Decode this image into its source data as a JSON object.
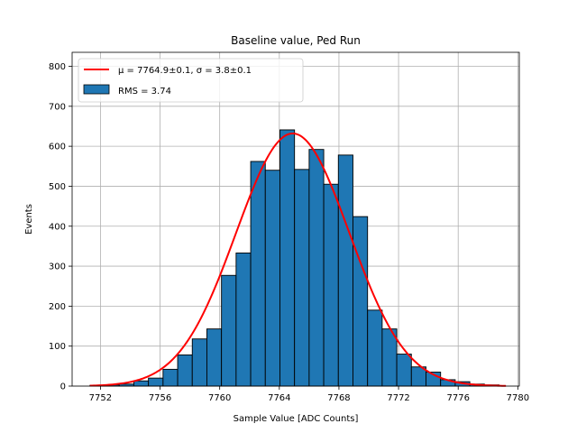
{
  "chart_data": {
    "type": "bar",
    "title": "Baseline value, Ped Run",
    "xlabel": "Sample Value [ADC Counts]",
    "ylabel": "Events",
    "xlim": [
      7750.1,
      7780.1
    ],
    "ylim": [
      0,
      835
    ],
    "xticks": [
      7752,
      7756,
      7760,
      7764,
      7768,
      7772,
      7776,
      7780
    ],
    "yticks": [
      0,
      100,
      200,
      300,
      400,
      500,
      600,
      700,
      800
    ],
    "grid": true,
    "legend_position": "top-left",
    "bar_color": "#1f77b4",
    "edge_color": "#000000",
    "fit_color": "#ff0000",
    "bins": {
      "start": 7751.3,
      "width": 0.98,
      "counts": [
        2,
        3,
        5,
        13,
        20,
        42,
        78,
        118,
        143,
        277,
        333,
        562,
        540,
        641,
        542,
        592,
        505,
        578,
        424,
        190,
        143,
        80,
        48,
        35,
        16,
        11,
        5,
        3
      ]
    },
    "fit": {
      "mu": 7764.9,
      "sigma": 3.8,
      "peak": 632,
      "label": "μ = 7764.9±0.1, σ = 3.8±0.1"
    },
    "legend": [
      {
        "name": "μ = 7764.9±0.1, σ = 3.8±0.1",
        "kind": "line"
      },
      {
        "name": "RMS = 3.74",
        "kind": "patch"
      }
    ]
  }
}
